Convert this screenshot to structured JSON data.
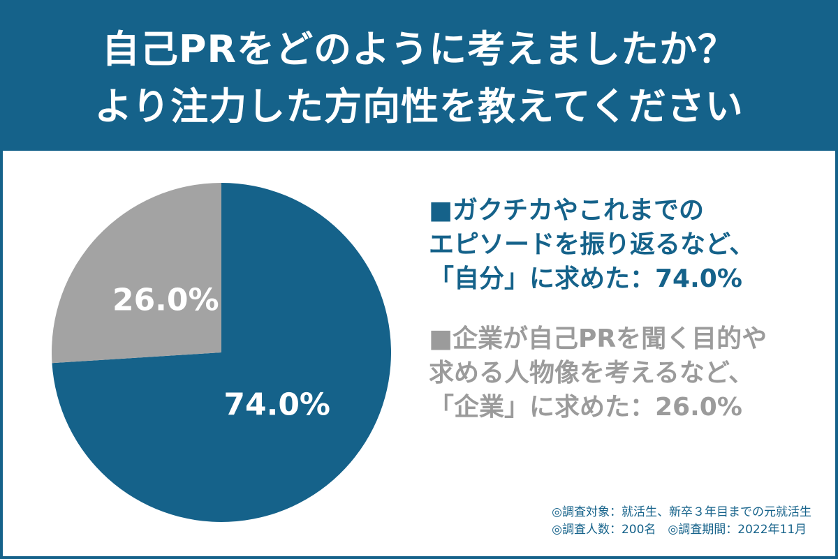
{
  "colors": {
    "primary": "#15628a",
    "secondary": "#a3a3a3",
    "header_bg": "#15628a",
    "title_text": "#ffffff",
    "legend_self": "#15628a",
    "legend_company": "#9b9b9b"
  },
  "header": {
    "title_line1": "自己PRをどのように考えましたか？",
    "title_line2": "より注力した方向性を教えてください"
  },
  "chart_data": {
    "type": "pie",
    "title": "自己PRをどのように考えましたか？ より注力した方向性を教えてください",
    "slices": [
      {
        "label": "「自分」に求めた",
        "value": 74.0,
        "value_label": "74.0%",
        "color": "#15628a"
      },
      {
        "label": "「企業」に求めた",
        "value": 26.0,
        "value_label": "26.0%",
        "color": "#a3a3a3"
      }
    ],
    "start": "top (12 o'clock)",
    "direction": "clockwise",
    "legend_position": "right"
  },
  "legend": {
    "self": {
      "lines": [
        "■ガクチカやこれまでの",
        "エピソードを振り返るなど、",
        "「自分」に求めた：74.0%"
      ]
    },
    "company": {
      "lines": [
        "■企業が自己PRを聞く目的や",
        "求める人物像を考えるなど、",
        "「企業」に求めた：26.0%"
      ]
    }
  },
  "footnotes": {
    "line1": "◎調査対象：就活生、新卒３年目までの元就活生",
    "line2": "◎調査人数：200名　◎調査期間：2022年11月"
  }
}
